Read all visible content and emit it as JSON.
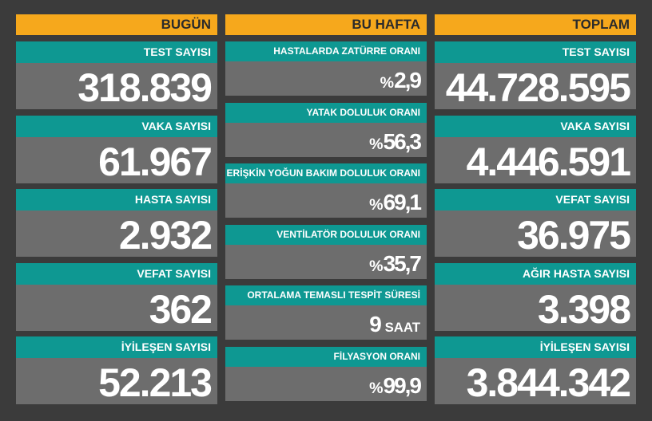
{
  "columns": [
    {
      "header": "BUGÜN",
      "cards": [
        {
          "label": "TEST SAYISI",
          "value": "318.839"
        },
        {
          "label": "VAKA SAYISI",
          "value": "61.967"
        },
        {
          "label": "HASTA SAYISI",
          "value": "2.932"
        },
        {
          "label": "VEFAT SAYISI",
          "value": "362"
        },
        {
          "label": "İYİLEŞEN SAYISI",
          "value": "52.213"
        }
      ]
    },
    {
      "header": "BU HAFTA",
      "cards": [
        {
          "label": "HASTALARDA ZATÜRRE ORANI",
          "prefix": "%",
          "value": "2,9"
        },
        {
          "label": "YATAK DOLULUK ORANI",
          "prefix": "%",
          "value": "56,3"
        },
        {
          "label": "ERİŞKİN YOĞUN BAKIM DOLULUK ORANI",
          "prefix": "%",
          "value": "69,1"
        },
        {
          "label": "VENTİLATÖR DOLULUK ORANI",
          "prefix": "%",
          "value": "35,7"
        },
        {
          "label": "ORTALAMA TEMASLI TESPİT SÜRESİ",
          "value": "9",
          "unit": "SAAT"
        },
        {
          "label": "FİLYASYON ORANI",
          "prefix": "%",
          "value": "99,9"
        }
      ]
    },
    {
      "header": "TOPLAM",
      "cards": [
        {
          "label": "TEST SAYISI",
          "value": "44.728.595"
        },
        {
          "label": "VAKA SAYISI",
          "value": "4.446.591"
        },
        {
          "label": "VEFAT SAYISI",
          "value": "36.975"
        },
        {
          "label": "AĞIR HASTA SAYISI",
          "value": "3.398"
        },
        {
          "label": "İYİLEŞEN SAYISI",
          "value": "3.844.342"
        }
      ]
    }
  ]
}
